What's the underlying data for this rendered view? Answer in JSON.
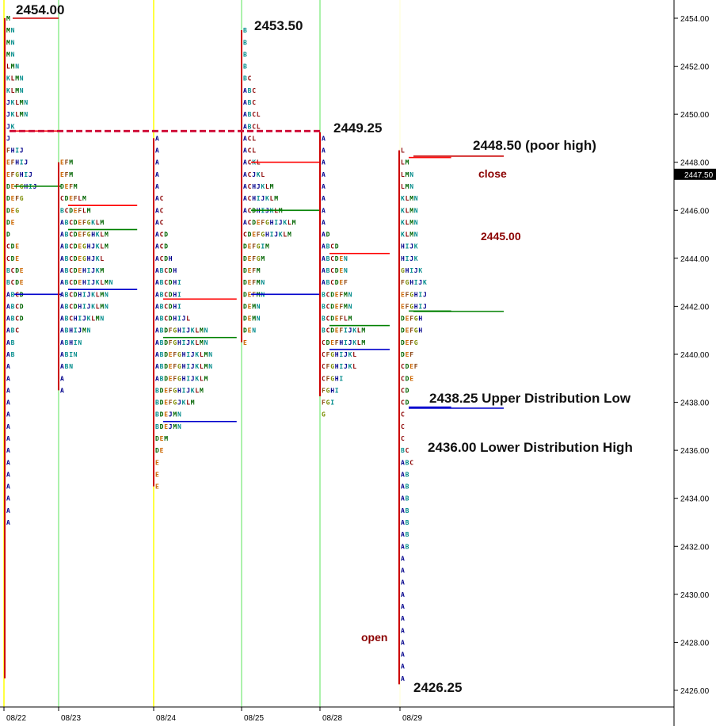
{
  "chart_data": {
    "type": "market-profile",
    "x_dates": [
      "08/22",
      "08/23",
      "08/24",
      "08/25",
      "08/28",
      "08/29"
    ],
    "y_ticks": [
      "2454.00",
      "2452.00",
      "2450.00",
      "2448.00",
      "2446.00",
      "2444.00",
      "2442.00",
      "2440.00",
      "2438.00",
      "2436.00",
      "2434.00",
      "2432.00",
      "2430.00",
      "2428.00",
      "2426.00"
    ],
    "ylim": [
      2425.5,
      2455.0
    ],
    "last_price": "2447.50",
    "colors": {
      "period_A": "#00008b",
      "period_B": "#008b8b",
      "period_C": "#8b0000",
      "period_D": "#006400",
      "period_E": "#cc6600",
      "period_F": "#8b4513",
      "period_G": "#7a8b00",
      "period_H": "#00008b",
      "period_I": "#008b8b",
      "poc": "#008000",
      "value_area_high": "#ff0000",
      "value_area_low": "#0000cc",
      "annotation_dark": "#111111",
      "annotation_red": "#8b0000"
    },
    "profiles": [
      {
        "date": "08/22",
        "high": 2454.0,
        "low": 2426.5,
        "rows": [
          {
            "price": 2454.0,
            "letters": "M"
          },
          {
            "price": 2453.5,
            "letters": "MN"
          },
          {
            "price": 2453.0,
            "letters": "MN"
          },
          {
            "price": 2452.5,
            "letters": "MN"
          },
          {
            "price": 2452.0,
            "letters": "LMN"
          },
          {
            "price": 2451.5,
            "letters": "KLMN"
          },
          {
            "price": 2451.0,
            "letters": "KLMN"
          },
          {
            "price": 2450.5,
            "letters": "JKLMN"
          },
          {
            "price": 2450.0,
            "letters": "JKLMN"
          },
          {
            "price": 2449.5,
            "letters": "JK"
          },
          {
            "price": 2449.0,
            "letters": "J"
          },
          {
            "price": 2448.5,
            "letters": "FHIJ"
          },
          {
            "price": 2448.0,
            "letters": "EFHIJ"
          },
          {
            "price": 2447.5,
            "letters": "EFGHIJ"
          },
          {
            "price": 2447.0,
            "letters": "DEFGHIJ"
          },
          {
            "price": 2446.5,
            "letters": "DEFG"
          },
          {
            "price": 2446.0,
            "letters": "DEG"
          },
          {
            "price": 2445.5,
            "letters": "DE"
          },
          {
            "price": 2445.0,
            "letters": "D"
          },
          {
            "price": 2444.5,
            "letters": "CDE"
          },
          {
            "price": 2444.0,
            "letters": "CDE"
          },
          {
            "price": 2443.5,
            "letters": "BCDE"
          },
          {
            "price": 2443.0,
            "letters": "BCDE"
          },
          {
            "price": 2442.5,
            "letters": "ABCD"
          },
          {
            "price": 2442.0,
            "letters": "ABCD"
          },
          {
            "price": 2441.5,
            "letters": "ABCD"
          },
          {
            "price": 2441.0,
            "letters": "ABC"
          },
          {
            "price": 2440.5,
            "letters": "AB"
          },
          {
            "price": 2440.0,
            "letters": "AB"
          },
          {
            "price": 2439.5,
            "letters": "A"
          },
          {
            "price": 2439.0,
            "letters": "A"
          },
          {
            "price": 2438.5,
            "letters": "A"
          },
          {
            "price": 2438.0,
            "letters": "A"
          },
          {
            "price": 2437.5,
            "letters": "A"
          },
          {
            "price": 2437.0,
            "letters": "A"
          },
          {
            "price": 2436.5,
            "letters": "A"
          },
          {
            "price": 2436.0,
            "letters": "A"
          },
          {
            "price": 2435.5,
            "letters": "A"
          },
          {
            "price": 2435.0,
            "letters": "A"
          },
          {
            "price": 2434.5,
            "letters": "A"
          },
          {
            "price": 2434.0,
            "letters": "A"
          },
          {
            "price": 2433.5,
            "letters": "A"
          },
          {
            "price": 2433.0,
            "letters": "A"
          }
        ],
        "poc": 2447.0,
        "vah": 2449.3,
        "val": 2442.5
      },
      {
        "date": "08/23",
        "high": 2448.0,
        "low": 2438.5,
        "rows": [
          {
            "price": 2448.0,
            "letters": "EFM"
          },
          {
            "price": 2447.5,
            "letters": "EFM"
          },
          {
            "price": 2447.0,
            "letters": "DEFM"
          },
          {
            "price": 2446.5,
            "letters": "CDEFLM"
          },
          {
            "price": 2446.0,
            "letters": "BCDEFLM"
          },
          {
            "price": 2445.5,
            "letters": "ABCDEFGKLM"
          },
          {
            "price": 2445.0,
            "letters": "ABCDEFGHKLM"
          },
          {
            "price": 2444.5,
            "letters": "ABCDEGHJKLM"
          },
          {
            "price": 2444.0,
            "letters": "ABCDEGHJKL"
          },
          {
            "price": 2443.5,
            "letters": "ABCDEHIJKM"
          },
          {
            "price": 2443.0,
            "letters": "ABCDEHIJKLMN"
          },
          {
            "price": 2442.5,
            "letters": "ABCDHIJKLMN"
          },
          {
            "price": 2442.0,
            "letters": "ABCDHIJKLMN"
          },
          {
            "price": 2441.5,
            "letters": "ABCHIJKLMN"
          },
          {
            "price": 2441.0,
            "letters": "ABHIJMN"
          },
          {
            "price": 2440.5,
            "letters": "ABHIN"
          },
          {
            "price": 2440.0,
            "letters": "ABIN"
          },
          {
            "price": 2439.5,
            "letters": "ABN"
          },
          {
            "price": 2439.0,
            "letters": "A"
          },
          {
            "price": 2438.5,
            "letters": "A"
          }
        ],
        "poc": 2445.2,
        "vah": 2446.2,
        "val": 2442.7
      },
      {
        "date": "08/24",
        "high": 2449.0,
        "low": 2434.5,
        "rows": [
          {
            "price": 2449.0,
            "letters": "A"
          },
          {
            "price": 2448.5,
            "letters": "A"
          },
          {
            "price": 2448.0,
            "letters": "A"
          },
          {
            "price": 2447.5,
            "letters": "A"
          },
          {
            "price": 2447.0,
            "letters": "A"
          },
          {
            "price": 2446.5,
            "letters": "AC"
          },
          {
            "price": 2446.0,
            "letters": "AC"
          },
          {
            "price": 2445.5,
            "letters": "AC"
          },
          {
            "price": 2445.0,
            "letters": "ACD"
          },
          {
            "price": 2444.5,
            "letters": "ACD"
          },
          {
            "price": 2444.0,
            "letters": "ACDH"
          },
          {
            "price": 2443.5,
            "letters": "ABCDH"
          },
          {
            "price": 2443.0,
            "letters": "ABCDHI"
          },
          {
            "price": 2442.5,
            "letters": "ABCDHI"
          },
          {
            "price": 2442.0,
            "letters": "ABCDHI"
          },
          {
            "price": 2441.5,
            "letters": "ABCDHIJL"
          },
          {
            "price": 2441.0,
            "letters": "ABDFGHIJKLMN"
          },
          {
            "price": 2440.5,
            "letters": "ABDFGHIJKLMN"
          },
          {
            "price": 2440.0,
            "letters": "ABDEFGHIJKLMN"
          },
          {
            "price": 2439.5,
            "letters": "ABDEFGHIJKLMN"
          },
          {
            "price": 2439.0,
            "letters": "ABDEFGHIJKLM"
          },
          {
            "price": 2438.5,
            "letters": "BDEFGHIJKLM"
          },
          {
            "price": 2438.0,
            "letters": "BDEFGJKLM"
          },
          {
            "price": 2437.5,
            "letters": "BDEJMN"
          },
          {
            "price": 2437.0,
            "letters": "BDEJMN"
          },
          {
            "price": 2436.5,
            "letters": "DEM"
          },
          {
            "price": 2436.0,
            "letters": "DE"
          },
          {
            "price": 2435.5,
            "letters": "E"
          },
          {
            "price": 2435.0,
            "letters": "E"
          },
          {
            "price": 2434.5,
            "letters": "E"
          }
        ],
        "poc": 2440.7,
        "vah": 2442.3,
        "val": 2437.2
      },
      {
        "date": "08/25",
        "high": 2453.5,
        "low": 2440.5,
        "rows": [
          {
            "price": 2453.5,
            "letters": "B"
          },
          {
            "price": 2453.0,
            "letters": "B"
          },
          {
            "price": 2452.5,
            "letters": "B"
          },
          {
            "price": 2452.0,
            "letters": "B"
          },
          {
            "price": 2451.5,
            "letters": "BC"
          },
          {
            "price": 2451.0,
            "letters": "ABC"
          },
          {
            "price": 2450.5,
            "letters": "ABC"
          },
          {
            "price": 2450.0,
            "letters": "ABCL"
          },
          {
            "price": 2449.5,
            "letters": "ABCL"
          },
          {
            "price": 2449.0,
            "letters": "ACL"
          },
          {
            "price": 2448.5,
            "letters": "ACL"
          },
          {
            "price": 2448.0,
            "letters": "ACKL"
          },
          {
            "price": 2447.5,
            "letters": "ACJKL"
          },
          {
            "price": 2447.0,
            "letters": "ACHJKLM"
          },
          {
            "price": 2446.5,
            "letters": "ACHIJKLM"
          },
          {
            "price": 2446.0,
            "letters": "ACDHIJKLM"
          },
          {
            "price": 2445.5,
            "letters": "ACDEFGHIJKLM"
          },
          {
            "price": 2445.0,
            "letters": "CDEFGHIJKLM"
          },
          {
            "price": 2444.5,
            "letters": "DEFGIM"
          },
          {
            "price": 2444.0,
            "letters": "DEFGM"
          },
          {
            "price": 2443.5,
            "letters": "DEFM"
          },
          {
            "price": 2443.0,
            "letters": "DEFMN"
          },
          {
            "price": 2442.5,
            "letters": "DEFMN"
          },
          {
            "price": 2442.0,
            "letters": "DEMN"
          },
          {
            "price": 2441.5,
            "letters": "DEMN"
          },
          {
            "price": 2441.0,
            "letters": "DEN"
          },
          {
            "price": 2440.5,
            "letters": "E"
          }
        ],
        "poc": 2446.0,
        "vah": 2448.0,
        "val": 2442.5
      },
      {
        "date": "08/28",
        "high": 2449.25,
        "low": 2438.25,
        "rows": [
          {
            "price": 2449.0,
            "letters": "A"
          },
          {
            "price": 2448.5,
            "letters": "A"
          },
          {
            "price": 2448.0,
            "letters": "A"
          },
          {
            "price": 2447.5,
            "letters": "A"
          },
          {
            "price": 2447.0,
            "letters": "A"
          },
          {
            "price": 2446.5,
            "letters": "A"
          },
          {
            "price": 2446.0,
            "letters": "A"
          },
          {
            "price": 2445.5,
            "letters": "A"
          },
          {
            "price": 2445.0,
            "letters": "AD"
          },
          {
            "price": 2444.5,
            "letters": "ABCD"
          },
          {
            "price": 2444.0,
            "letters": "ABCDEN"
          },
          {
            "price": 2443.5,
            "letters": "ABCDEN"
          },
          {
            "price": 2443.0,
            "letters": "ABCDEF"
          },
          {
            "price": 2442.5,
            "letters": "BCDEFMN"
          },
          {
            "price": 2442.0,
            "letters": "BCDEFMN"
          },
          {
            "price": 2441.5,
            "letters": "BCDEFLM"
          },
          {
            "price": 2441.0,
            "letters": "BCDEFIJKLM"
          },
          {
            "price": 2440.5,
            "letters": "CDEFHIJKLM"
          },
          {
            "price": 2440.0,
            "letters": "CFGHIJKL"
          },
          {
            "price": 2439.5,
            "letters": "CFGHIJKL"
          },
          {
            "price": 2439.0,
            "letters": "CFGHI"
          },
          {
            "price": 2438.5,
            "letters": "FGHI"
          },
          {
            "price": 2438.0,
            "letters": "FGI"
          },
          {
            "price": 2437.5,
            "letters": "G"
          }
        ],
        "poc": 2441.2,
        "vah": 2444.2,
        "val": 2440.2
      },
      {
        "date": "08/29",
        "high": 2448.5,
        "low": 2426.25,
        "rows": [
          {
            "price": 2448.5,
            "letters": "L"
          },
          {
            "price": 2448.0,
            "letters": "LM"
          },
          {
            "price": 2447.5,
            "letters": "LMN"
          },
          {
            "price": 2447.0,
            "letters": "LMN"
          },
          {
            "price": 2446.5,
            "letters": "KLMN"
          },
          {
            "price": 2446.0,
            "letters": "KLMN"
          },
          {
            "price": 2445.5,
            "letters": "KLMN"
          },
          {
            "price": 2445.0,
            "letters": "KLMN"
          },
          {
            "price": 2444.5,
            "letters": "HIJK"
          },
          {
            "price": 2444.0,
            "letters": "HIJK"
          },
          {
            "price": 2443.5,
            "letters": "GHIJK"
          },
          {
            "price": 2443.0,
            "letters": "FGHIJK"
          },
          {
            "price": 2442.5,
            "letters": "EFGHIJ"
          },
          {
            "price": 2442.0,
            "letters": "EFGHIJ"
          },
          {
            "price": 2441.5,
            "letters": "DEFGH"
          },
          {
            "price": 2441.0,
            "letters": "DEFGH"
          },
          {
            "price": 2440.5,
            "letters": "DEFG"
          },
          {
            "price": 2440.0,
            "letters": "DEF"
          },
          {
            "price": 2439.5,
            "letters": "CDEF"
          },
          {
            "price": 2439.0,
            "letters": "CDE"
          },
          {
            "price": 2438.5,
            "letters": "CD"
          },
          {
            "price": 2438.0,
            "letters": "CD"
          },
          {
            "price": 2437.5,
            "letters": "C"
          },
          {
            "price": 2437.0,
            "letters": "C"
          },
          {
            "price": 2436.5,
            "letters": "C"
          },
          {
            "price": 2436.0,
            "letters": "BC"
          },
          {
            "price": 2435.5,
            "letters": "ABC"
          },
          {
            "price": 2435.0,
            "letters": "AB"
          },
          {
            "price": 2434.5,
            "letters": "AB"
          },
          {
            "price": 2434.0,
            "letters": "AB"
          },
          {
            "price": 2433.5,
            "letters": "AB"
          },
          {
            "price": 2433.0,
            "letters": "AB"
          },
          {
            "price": 2432.5,
            "letters": "AB"
          },
          {
            "price": 2432.0,
            "letters": "AB"
          },
          {
            "price": 2431.5,
            "letters": "A"
          },
          {
            "price": 2431.0,
            "letters": "A"
          },
          {
            "price": 2430.5,
            "letters": "A"
          },
          {
            "price": 2430.0,
            "letters": "A"
          },
          {
            "price": 2429.5,
            "letters": "A"
          },
          {
            "price": 2429.0,
            "letters": "A"
          },
          {
            "price": 2428.5,
            "letters": "A"
          },
          {
            "price": 2428.0,
            "letters": "A"
          },
          {
            "price": 2427.5,
            "letters": "A"
          },
          {
            "price": 2427.0,
            "letters": "A"
          },
          {
            "price": 2426.5,
            "letters": "A"
          }
        ],
        "poc": 2441.8,
        "vah": 2448.2,
        "val": 2437.8
      }
    ],
    "reference_lines": [
      {
        "price": 2449.3,
        "style": "dashed",
        "color": "#d0103a",
        "from_day": 0,
        "to_day": 4
      }
    ],
    "annotations": [
      {
        "text": "2454.00",
        "price": 2454.0,
        "day": 0,
        "style": "dark"
      },
      {
        "text": "2453.50",
        "price": 2453.5,
        "day": 3,
        "style": "dark"
      },
      {
        "text": "2449.25",
        "price": 2449.25,
        "day": 4,
        "style": "dark"
      },
      {
        "text": "2448.50 (poor high)",
        "price": 2448.5,
        "day": 5,
        "style": "dark"
      },
      {
        "text": "close",
        "price": 2447.5,
        "day": 5,
        "style": "red"
      },
      {
        "text": "2445.00",
        "price": 2445.0,
        "day": 5,
        "style": "red"
      },
      {
        "text": "2438.25 Upper Distribution Low",
        "price": 2438.25,
        "day": 5,
        "style": "dark"
      },
      {
        "text": "2436.00 Lower Distribution High",
        "price": 2436.0,
        "day": 5,
        "style": "dark"
      },
      {
        "text": "open",
        "price": 2428.0,
        "day": 5,
        "style": "red"
      },
      {
        "text": "2426.25",
        "price": 2426.25,
        "day": 5,
        "style": "dark"
      }
    ]
  }
}
